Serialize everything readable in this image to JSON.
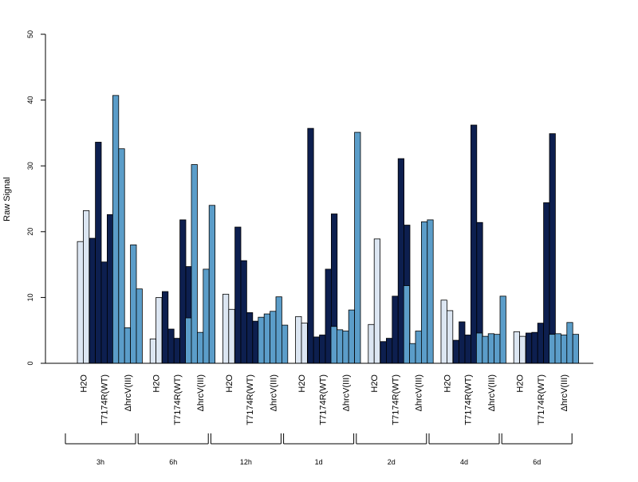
{
  "chart_data": {
    "type": "bar",
    "title": "",
    "xlabel": "",
    "ylabel": "Raw Signal",
    "ylim": [
      0,
      50
    ],
    "yticks": [
      0,
      10,
      20,
      30,
      40,
      50
    ],
    "grid": false,
    "legend": "none",
    "group_labels": [
      "H2O",
      "T7174R(WT)",
      "ΔhrcV(III)"
    ],
    "group_colors": [
      "#dce6f2",
      "#0d1f4f",
      "#5b9dc9"
    ],
    "timepoints": [
      {
        "label": "3h",
        "groups": [
          [
            18.5,
            23.2
          ],
          [
            19.0,
            33.6,
            15.4,
            22.6,
            18.0
          ],
          [
            40.7,
            32.6,
            5.4,
            18.0,
            11.3
          ]
        ]
      },
      {
        "label": "6h",
        "groups": [
          [
            3.7,
            10.0
          ],
          [
            10.9,
            5.2,
            3.8,
            21.8,
            14.7
          ],
          [
            6.9,
            30.2,
            4.7,
            14.3,
            24.0
          ]
        ]
      },
      {
        "label": "12h",
        "groups": [
          [
            10.5,
            8.2
          ],
          [
            20.7,
            15.6,
            7.7,
            6.4,
            6.6
          ],
          [
            7.0,
            7.5,
            7.9,
            10.1,
            5.8
          ]
        ]
      },
      {
        "label": "1d",
        "groups": [
          [
            7.1,
            6.1
          ],
          [
            35.7,
            4.0,
            4.3,
            14.3,
            22.7
          ],
          [
            5.6,
            5.1,
            4.9,
            8.1,
            35.1
          ]
        ]
      },
      {
        "label": "2d",
        "groups": [
          [
            5.9,
            18.9
          ],
          [
            3.3,
            3.8,
            10.2,
            31.1,
            21.0
          ],
          [
            11.8,
            3.0,
            4.9,
            21.5,
            21.8
          ]
        ]
      },
      {
        "label": "4d",
        "groups": [
          [
            9.6,
            8.0
          ],
          [
            3.5,
            6.3,
            4.3,
            36.2,
            21.4
          ],
          [
            4.6,
            4.1,
            4.5,
            4.4,
            10.2
          ]
        ]
      },
      {
        "label": "6d",
        "groups": [
          [
            4.8,
            4.1
          ],
          [
            4.6,
            4.7,
            6.1,
            24.4,
            34.9
          ],
          [
            4.4,
            4.5,
            4.3,
            6.2,
            4.4
          ]
        ]
      }
    ]
  }
}
